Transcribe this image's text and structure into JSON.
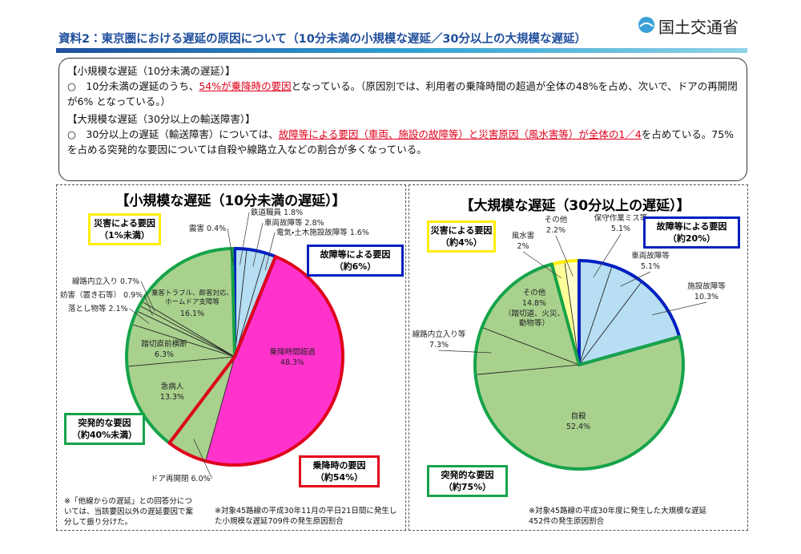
{
  "header": {
    "title": "資料2：東京圏における遅延の原因について（10分未満の小規模な遅延／30分以上の大規模な遅延）",
    "org": "国土交通省"
  },
  "summary": {
    "small_heading": "【小規模な遅延（10分未満の遅延）】",
    "small_text": [
      "○　10分未満の遅延のうち、",
      "54%が乗降時の要因",
      "となっている。（原因別では、利用者の乗降時間の超過が全体の48%を占め、次いで、ドアの再開閉が6% となっている。）"
    ],
    "large_heading": "【大規模な遅延（30分以上の輸送障害）】",
    "large_text": [
      "○　30分以上の遅延（輸送障害）については、",
      "故障等による要因（車両、施設の故障等）と災害原因（風水害等）が全体の1／4",
      "を占めている。75%を占める突発的な要因については自殺や線路立入などの割合が多くなっている。"
    ]
  },
  "chart_data": [
    {
      "type": "pie",
      "title": "【小規模な遅延（10分未満の遅延）】",
      "categories": [
        "鉄道職員",
        "車両故障等",
        "電気・土木施設故障等",
        "乗降時間超過",
        "ドア再開閉",
        "急病人",
        "踏切直前横断",
        "落とし物等",
        "妨害（置き石等）",
        "線路内立入り",
        "乗客トラブル、酔客対応、ホームドア支障等",
        "震害"
      ],
      "values": [
        1.8,
        2.8,
        1.6,
        48.3,
        6.0,
        13.3,
        6.3,
        2.1,
        0.9,
        0.7,
        16.1,
        0.4
      ],
      "value_labels": [
        "1.8%",
        "2.8%",
        "1.6%",
        "48.3%",
        "6.0%",
        "13.3%",
        "6.3%",
        "2.1%",
        "0.9%",
        "0.7%",
        "16.1%",
        "0.4%"
      ],
      "colors": [
        "#b7def2",
        "#b7def2",
        "#b7def2",
        "#ff33cc",
        "#a9d18e",
        "#a9d18e",
        "#a9d18e",
        "#a9d18e",
        "#a9d18e",
        "#a9d18e",
        "#a9d18e",
        "#ffff99"
      ],
      "groups": [
        {
          "label": "災害による要因",
          "share": "（1%未満）",
          "color": "#ffee00"
        },
        {
          "label": "故障等による要因",
          "share": "（約6%）",
          "color": "#0020c0"
        },
        {
          "label": "突発的な要因",
          "share": "（約40%未満）",
          "color": "#16a34a"
        },
        {
          "label": "乗降時の要因",
          "share": "（約54%）",
          "color": "#e0001b"
        }
      ],
      "footnotes": [
        "※「他線からの遅延」との回答分については、当該要因以外の遅延要因で案分して振り分けた。",
        "※対象45路線の平成30年11月の平日21日間に発生した小規模な遅延709件の発生原因割合"
      ]
    },
    {
      "type": "pie",
      "title": "【大規模な遅延（30分以上の遅延）】",
      "categories": [
        "保守作業ミス等",
        "車両故障等",
        "施設故障等",
        "自殺",
        "線路内立入り等",
        "その他",
        "風水害",
        "その他"
      ],
      "values": [
        5.1,
        5.1,
        10.3,
        52.4,
        7.3,
        14.8,
        2,
        2.2
      ],
      "value_labels": [
        "5.1%",
        "5.1%",
        "10.3%",
        "52.4%",
        "7.3%",
        "14.8%",
        "2%",
        "2.2%"
      ],
      "colors": [
        "#b7def2",
        "#b7def2",
        "#b7def2",
        "#a9d18e",
        "#a9d18e",
        "#a9d18e",
        "#ffff99",
        "#ffffcc"
      ],
      "annotations": [
        "（踏切道、火災、動物等）"
      ],
      "groups": [
        {
          "label": "災害による要因",
          "share": "（約4%）",
          "color": "#ffee00"
        },
        {
          "label": "故障等による要因",
          "share": "（約20%）",
          "color": "#0020c0"
        },
        {
          "label": "突発的な要因",
          "share": "（約75%）",
          "color": "#16a34a"
        }
      ],
      "footnotes": [
        "※対象45路線の平成30年度に発生した大規模な遅延452件の発生原因割合"
      ]
    }
  ]
}
